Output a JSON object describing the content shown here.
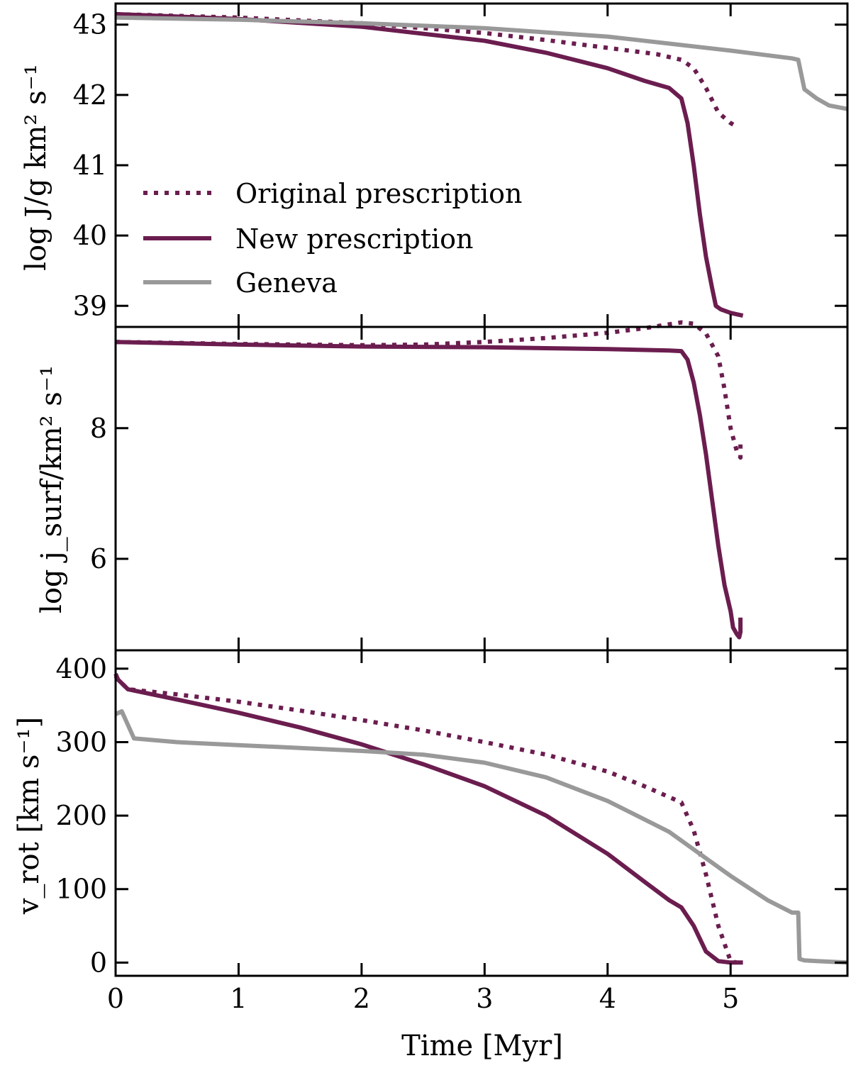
{
  "colors": {
    "original": "#6b1d4f",
    "new": "#6b1d4f",
    "geneva": "#999999"
  },
  "legend": {
    "original": "Original prescription",
    "new": "New prescription",
    "geneva": "Geneva"
  },
  "xaxis": {
    "label": "Time [Myr]"
  },
  "chart_data": [
    {
      "type": "line",
      "panel": "top",
      "ylabel": "log J/g km² s⁻¹",
      "xlim": [
        0,
        5.95
      ],
      "ylim": [
        38.7,
        43.3
      ],
      "xticks": [
        0,
        1,
        2,
        3,
        4,
        5
      ],
      "yticks": [
        39,
        40,
        41,
        42,
        43
      ],
      "series": [
        {
          "name": "Original prescription",
          "style": "dotted",
          "color": "#6b1d4f",
          "x": [
            0,
            1,
            2,
            3,
            3.5,
            4,
            4.4,
            4.6,
            4.7,
            4.8,
            4.9,
            5.0,
            5.05
          ],
          "y": [
            43.15,
            43.1,
            43.02,
            42.88,
            42.78,
            42.67,
            42.58,
            42.5,
            42.38,
            42.1,
            41.75,
            41.6,
            41.55
          ]
        },
        {
          "name": "New prescription",
          "style": "solid",
          "color": "#6b1d4f",
          "x": [
            0,
            1,
            2,
            3,
            3.5,
            4,
            4.3,
            4.5,
            4.6,
            4.65,
            4.7,
            4.75,
            4.8,
            4.85,
            4.88,
            4.92,
            5.0,
            5.05,
            5.1
          ],
          "y": [
            43.15,
            43.08,
            42.97,
            42.77,
            42.6,
            42.38,
            42.2,
            42.1,
            41.95,
            41.6,
            41.0,
            40.3,
            39.7,
            39.25,
            39.0,
            38.95,
            38.9,
            38.88,
            38.86
          ]
        },
        {
          "name": "Geneva",
          "style": "solid",
          "color": "#999999",
          "x": [
            0,
            1,
            2,
            3,
            4,
            5,
            5.5,
            5.55,
            5.6,
            5.7,
            5.8,
            5.95
          ],
          "y": [
            43.1,
            43.07,
            43.02,
            42.95,
            42.83,
            42.63,
            42.52,
            42.5,
            42.08,
            41.95,
            41.85,
            41.8
          ]
        }
      ]
    },
    {
      "type": "line",
      "panel": "middle",
      "ylabel": "log j_surf/km² s⁻¹",
      "xlim": [
        0,
        5.95
      ],
      "ylim": [
        4.6,
        9.55
      ],
      "xticks": [
        0,
        1,
        2,
        3,
        4,
        5
      ],
      "yticks": [
        6,
        8
      ],
      "series": [
        {
          "name": "Original prescription",
          "style": "dotted",
          "color": "#6b1d4f",
          "x": [
            0,
            1,
            2,
            2.5,
            3,
            3.5,
            4,
            4.3,
            4.5,
            4.6,
            4.7,
            4.8,
            4.9,
            4.95,
            5.0,
            5.05,
            5.08,
            5.08
          ],
          "y": [
            9.32,
            9.29,
            9.27,
            9.28,
            9.32,
            9.38,
            9.46,
            9.53,
            9.59,
            9.62,
            9.6,
            9.45,
            9.1,
            8.6,
            8.0,
            7.65,
            7.55,
            7.75
          ]
        },
        {
          "name": "New prescription",
          "style": "solid",
          "color": "#6b1d4f",
          "x": [
            0,
            1,
            2,
            3,
            4,
            4.5,
            4.6,
            4.65,
            4.7,
            4.75,
            4.8,
            4.85,
            4.9,
            4.95,
            5.0,
            5.02,
            5.05,
            5.07,
            5.08,
            5.08
          ],
          "y": [
            9.32,
            9.28,
            9.25,
            9.24,
            9.21,
            9.19,
            9.18,
            9.05,
            8.7,
            8.2,
            7.6,
            6.9,
            6.2,
            5.6,
            5.2,
            4.95,
            4.85,
            4.8,
            4.88,
            5.1
          ]
        }
      ]
    },
    {
      "type": "line",
      "panel": "bottom",
      "ylabel": "v_rot [km s⁻¹]",
      "xlim": [
        0,
        5.95
      ],
      "ylim": [
        -18,
        425
      ],
      "xticks": [
        0,
        1,
        2,
        3,
        4,
        5
      ],
      "yticks": [
        0,
        100,
        200,
        300,
        400
      ],
      "series": [
        {
          "name": "Original prescription",
          "style": "dotted",
          "color": "#6b1d4f",
          "x": [
            0,
            0.02,
            0.1,
            0.5,
            1,
            1.5,
            2,
            2.5,
            3,
            3.5,
            4,
            4.3,
            4.6,
            4.7,
            4.8,
            4.9,
            5.0,
            5.05
          ],
          "y": [
            390,
            385,
            372,
            365,
            355,
            343,
            330,
            316,
            300,
            283,
            260,
            240,
            218,
            180,
            120,
            50,
            2,
            0
          ]
        },
        {
          "name": "New prescription",
          "style": "solid",
          "color": "#6b1d4f",
          "x": [
            0,
            0.02,
            0.1,
            0.5,
            1,
            1.5,
            2,
            2.5,
            3,
            3.5,
            4,
            4.3,
            4.5,
            4.6,
            4.7,
            4.8,
            4.9,
            5.0,
            5.1
          ],
          "y": [
            393,
            385,
            372,
            358,
            340,
            320,
            297,
            270,
            240,
            200,
            148,
            110,
            85,
            75,
            50,
            15,
            2,
            0,
            0
          ]
        },
        {
          "name": "Geneva",
          "style": "solid",
          "color": "#999999",
          "x": [
            0,
            0.05,
            0.15,
            0.5,
            1,
            1.5,
            2,
            2.5,
            3,
            3.5,
            4,
            4.5,
            5.0,
            5.3,
            5.5,
            5.55,
            5.56,
            5.6,
            5.7,
            5.95
          ],
          "y": [
            338,
            342,
            305,
            300,
            296,
            292,
            288,
            283,
            272,
            252,
            220,
            178,
            118,
            85,
            68,
            68,
            5,
            3,
            2,
            0
          ]
        }
      ]
    }
  ]
}
